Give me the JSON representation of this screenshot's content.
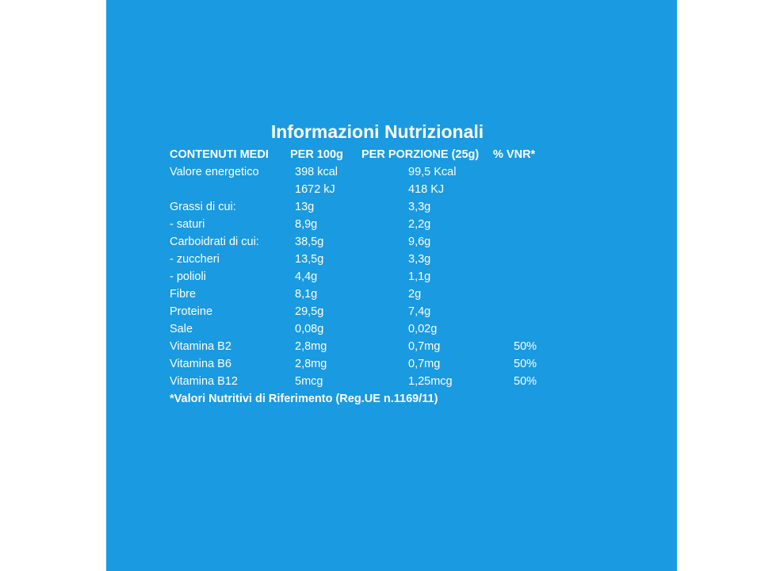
{
  "title": "Informazioni Nutrizionali",
  "table": {
    "headers": [
      "CONTENUTI MEDI",
      "PER 100g",
      "PER PORZIONE (25g)",
      "% VNR*"
    ],
    "rows": [
      {
        "label": "Valore energetico",
        "per_100g": "398 kcal",
        "per_portion": "99,5 Kcal"
      },
      {
        "per_100g": "1672 kJ",
        "per_portion": "418 KJ"
      },
      {
        "label": "Grassi di cui:",
        "per_100g": "13g",
        "per_portion": "3,3g"
      },
      {
        "label": "- saturi",
        "per_100g": "8,9g",
        "per_portion": "2,2g"
      },
      {
        "label": "Carboidrati di cui:",
        "per_100g": "38,5g",
        "per_portion": "9,6g"
      },
      {
        "label": "- zuccheri",
        "per_100g": "13,5g",
        "per_portion": "3,3g"
      },
      {
        "label": "- polioli",
        "per_100g": "4,4g",
        "per_portion": "1,1g"
      },
      {
        "label": "Fibre",
        "per_100g": "8,1g",
        "per_portion": "2g"
      },
      {
        "label": "Proteine",
        "per_100g": "29,5g",
        "per_portion": "7,4g"
      },
      {
        "label": "Sale",
        "per_100g": "0,08g",
        "per_portion": "0,02g"
      },
      {
        "label": "Vitamina B2",
        "per_100g": "2,8mg",
        "per_portion": "0,7mg",
        "vnr": "50%"
      },
      {
        "label": "Vitamina B6",
        "per_100g": "2,8mg",
        "per_portion": "0,7mg",
        "vnr": "50%"
      },
      {
        "label": "Vitamina B12",
        "per_100g": "5mcg",
        "per_portion": "1,25mcg",
        "vnr": "50%"
      }
    ]
  },
  "footnote": "*Valori Nutritivi di Riferimento (Reg.UE n.1169/11)"
}
